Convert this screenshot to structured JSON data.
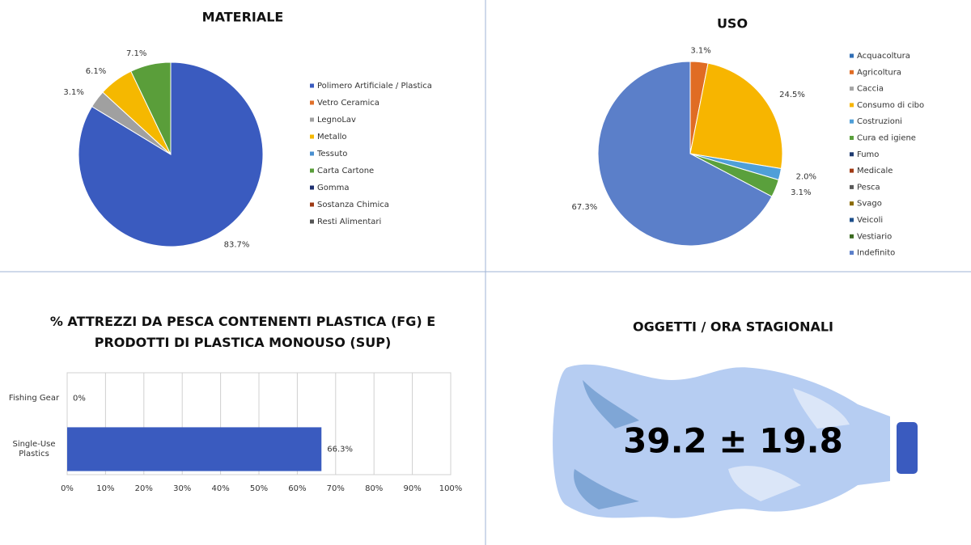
{
  "chart_data": [
    {
      "type": "pie",
      "title": "MATERIALE",
      "categories": [
        "Polimero Artificiale / Plastica",
        "Vetro Ceramica",
        "LegnoLav",
        "Metallo",
        "Tessuto",
        "Carta Cartone",
        "Gomma",
        "Sostanza Chimica",
        "Resti Alimentari"
      ],
      "values": [
        83.7,
        0,
        3.1,
        6.1,
        0,
        7.1,
        0,
        0,
        0
      ],
      "value_labels": [
        "83.7%",
        null,
        "3.1%",
        "6.1%",
        null,
        "7.1%",
        null,
        null,
        null
      ],
      "colors": [
        "#3a5bbf",
        "#e0702b",
        "#a0a0a0",
        "#f5b800",
        "#4a90d0",
        "#5a9e3a",
        "#1f3070",
        "#9e3a14",
        "#555555"
      ],
      "legend": "right"
    },
    {
      "type": "pie",
      "title": "USO",
      "categories": [
        "Acquacoltura",
        "Agricoltura",
        "Caccia",
        "Consumo di cibo",
        "Costruzioni",
        "Cura ed igiene",
        "Fumo",
        "Medicale",
        "Pesca",
        "Svago",
        "Veicoli",
        "Vestiario",
        "Indefinito"
      ],
      "values": [
        0,
        3.1,
        0,
        24.5,
        2.0,
        3.1,
        0,
        0,
        0,
        0,
        0,
        0,
        67.3
      ],
      "value_labels": [
        null,
        "3.1%",
        null,
        "24.5%",
        "2.0%",
        "3.1%",
        null,
        null,
        null,
        null,
        null,
        null,
        "67.3%"
      ],
      "colors": [
        "#2f6eb5",
        "#e06c24",
        "#a5a5a5",
        "#f7b500",
        "#4f9fd8",
        "#5aa03c",
        "#1e3a70",
        "#a03a14",
        "#5a5a5a",
        "#8a6a00",
        "#1d4f8a",
        "#3a6a20",
        "#5b7fc9"
      ],
      "legend": "right"
    },
    {
      "type": "hbar",
      "title": "% ATTREZZI DA PESCA CONTENENTI PLASTICA (FG) E PRODOTTI DI PLASTICA MONOUSO (SUP)",
      "categories": [
        "Fishing Gear",
        "Single-Use Plastics"
      ],
      "values": [
        0,
        66.3
      ],
      "value_labels": [
        "0%",
        "66.3%"
      ],
      "color": "#3a5bbf",
      "xlim": [
        0,
        100
      ],
      "xticks": [
        {
          "value": 0,
          "label": "0%"
        },
        {
          "value": 10,
          "label": "10%"
        },
        {
          "value": 20,
          "label": "20%"
        },
        {
          "value": 30,
          "label": "30%"
        },
        {
          "value": 40,
          "label": "40%"
        },
        {
          "value": 50,
          "label": "50%"
        },
        {
          "value": 60,
          "label": "60%"
        },
        {
          "value": 70,
          "label": "70%"
        },
        {
          "value": 80,
          "label": "80%"
        },
        {
          "value": 90,
          "label": "90%"
        },
        {
          "value": 100,
          "label": "100%"
        }
      ],
      "grid": true
    }
  ],
  "kpi": {
    "title": "OGGETTI / ORA STAGIONALI",
    "value": "39.2 ± 19.8"
  }
}
